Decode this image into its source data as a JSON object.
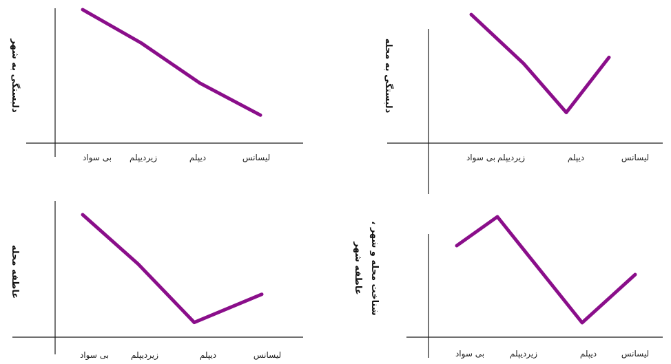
{
  "colors": {
    "series": "#8a0e8a",
    "axis": "#1a1a1a",
    "text": "#222222"
  },
  "chart_data": [
    {
      "type": "line",
      "categories": [
        "بی سواد",
        "زیردیپلم",
        "دیپلم",
        "لیسانس"
      ],
      "ylabel": "دلبستگی به شهر",
      "ylim": [
        0,
        10
      ],
      "series": [
        {
          "values": [
            10,
            7.5,
            4.5,
            2.1
          ]
        }
      ]
    },
    {
      "type": "line",
      "categories": [
        "بی سواد",
        "زیردیپلم",
        "دیپلم",
        "لیسانس"
      ],
      "ylabel": "دلبستگی به محله",
      "ylim": [
        0,
        10
      ],
      "series": [
        {
          "values": [
            10.5,
            6.5,
            2.5,
            7
          ]
        }
      ]
    },
    {
      "type": "line",
      "categories": [
        "بی سواد",
        "زیردیپلم",
        "دیپلم",
        "لیسانس"
      ],
      "ylabel": "عاطفه محله",
      "ylim": [
        0,
        10
      ],
      "series": [
        {
          "values": [
            10,
            6,
            1.2,
            3.5
          ]
        }
      ]
    },
    {
      "type": "line",
      "categories": [
        "بی سواد",
        "زیردیپلم",
        "دیپلم",
        "لیسانس"
      ],
      "ylabel": "شناخت محله و شهر ، عاطفه شهر",
      "ylim": [
        0,
        10
      ],
      "series": [
        {
          "values": [
            9.5,
            12.5,
            1.5,
            6.5
          ]
        }
      ]
    }
  ]
}
